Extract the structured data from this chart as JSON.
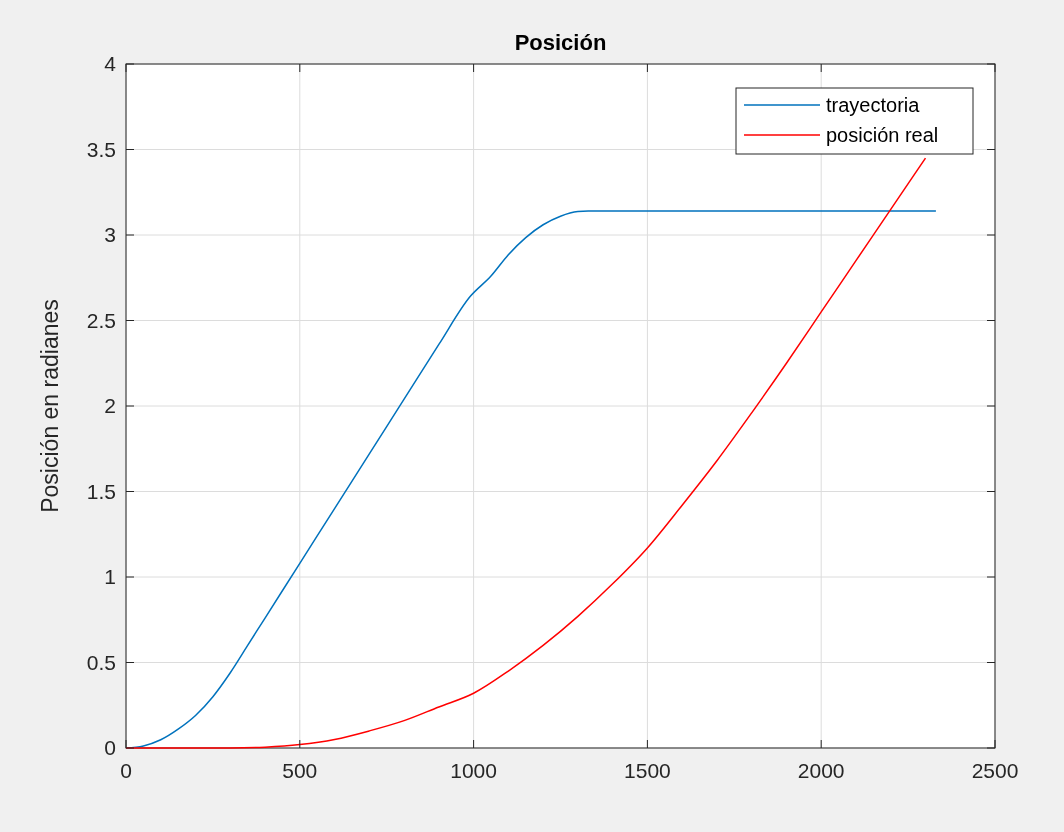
{
  "chart_data": {
    "type": "line",
    "title": "Posición",
    "ylabel": "Posición en radianes",
    "xlim": [
      0,
      2500
    ],
    "xticks": [
      0,
      500,
      1000,
      1500,
      2000,
      2500
    ],
    "ylim": [
      0,
      4
    ],
    "yticks": [
      0,
      0.5,
      1,
      1.5,
      2,
      2.5,
      3,
      3.5,
      4
    ],
    "grid": true,
    "legend": "top right",
    "line_style": "solid",
    "marker": "none",
    "series": [
      {
        "name": "trayectoria",
        "color": "#0072bd",
        "x": [
          0,
          50,
          100,
          150,
          200,
          250,
          300,
          350,
          400,
          500,
          600,
          700,
          800,
          900,
          990,
          1050,
          1100,
          1150,
          1200,
          1250,
          1300,
          1330,
          2330
        ],
        "values": [
          0,
          0.012,
          0.048,
          0.11,
          0.19,
          0.3,
          0.44,
          0.6,
          0.76,
          1.08,
          1.4,
          1.72,
          2.04,
          2.36,
          2.64,
          2.76,
          2.885,
          2.985,
          3.06,
          3.11,
          3.137,
          3.14,
          3.14
        ]
      },
      {
        "name": "posición real",
        "color": "#ff0000",
        "x": [
          0,
          300,
          400,
          500,
          600,
          700,
          800,
          900,
          1000,
          1100,
          1200,
          1300,
          1400,
          1500,
          1600,
          1700,
          1800,
          1900,
          2000,
          2100,
          2200,
          2300
        ],
        "values": [
          0,
          0,
          0.005,
          0.02,
          0.05,
          0.1,
          0.16,
          0.24,
          0.32,
          0.45,
          0.6,
          0.77,
          0.96,
          1.17,
          1.42,
          1.68,
          1.96,
          2.25,
          2.55,
          2.85,
          3.15,
          3.45
        ]
      }
    ]
  }
}
